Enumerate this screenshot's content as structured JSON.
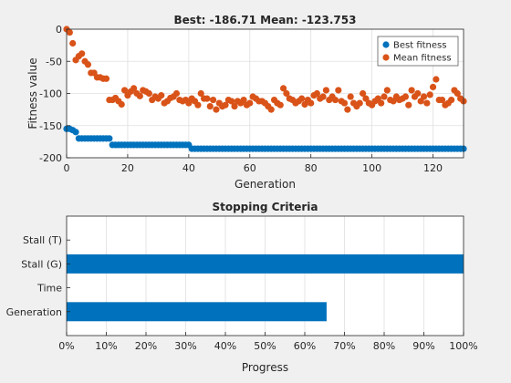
{
  "colors": {
    "best": "#0072BD",
    "mean": "#D95319",
    "background": "#f0f0f0",
    "axes_bg": "#ffffff",
    "grid": "#dfdfdf",
    "axis": "#262626"
  },
  "chart_data": [
    {
      "type": "scatter",
      "title": "Best: -186.71 Mean: -123.753",
      "xlabel": "Generation",
      "ylabel": "Fitness value",
      "xlim": [
        0,
        130
      ],
      "ylim": [
        -200,
        0
      ],
      "xticks": [
        0,
        20,
        40,
        60,
        80,
        100,
        120
      ],
      "yticks": [
        0,
        -50,
        -100,
        -150,
        -200
      ],
      "xtick_labels": [
        "0",
        "20",
        "40",
        "60",
        "80",
        "100",
        "120"
      ],
      "ytick_labels": [
        "0",
        "-50",
        "-100",
        "-150",
        "-200"
      ],
      "grid": true,
      "legend_position": "top-right",
      "series": [
        {
          "name": "Best fitness",
          "values": [
            -155,
            -155,
            -157,
            -160,
            -170,
            -170,
            -170,
            -170,
            -170,
            -170,
            -170,
            -170,
            -170,
            -170,
            -170,
            -180,
            -180,
            -180,
            -180,
            -180,
            -180,
            -180,
            -180,
            -180,
            -180,
            -180,
            -180,
            -180,
            -180,
            -180,
            -180,
            -180,
            -180,
            -180,
            -180,
            -180,
            -180,
            -180,
            -180,
            -180,
            -180,
            -186,
            -186,
            -186,
            -186,
            -186,
            -186,
            -186,
            -186,
            -186,
            -186,
            -186,
            -186,
            -186,
            -186,
            -186,
            -186,
            -186,
            -186,
            -186,
            -186,
            -186,
            -186,
            -186,
            -186,
            -186,
            -186,
            -186,
            -186,
            -186,
            -186,
            -186,
            -186,
            -186,
            -186,
            -186,
            -186,
            -186,
            -186,
            -186,
            -186,
            -186,
            -186,
            -186,
            -186,
            -186,
            -186,
            -186,
            -186,
            -186,
            -186,
            -186,
            -186,
            -186,
            -186,
            -186,
            -186,
            -186,
            -186,
            -186,
            -186,
            -186,
            -186,
            -186,
            -186,
            -186,
            -186,
            -186,
            -186,
            -186,
            -186,
            -186,
            -186,
            -186,
            -186,
            -186,
            -186,
            -186,
            -186,
            -186,
            -186,
            -186,
            -186,
            -186,
            -186,
            -186,
            -186,
            -186,
            -186,
            -186,
            -186
          ]
        },
        {
          "name": "Mean fitness",
          "values": [
            0,
            -5,
            -22,
            -48,
            -42,
            -38,
            -50,
            -55,
            -68,
            -68,
            -75,
            -75,
            -77,
            -77,
            -110,
            -110,
            -107,
            -112,
            -117,
            -95,
            -103,
            -97,
            -92,
            -100,
            -104,
            -95,
            -97,
            -100,
            -110,
            -105,
            -108,
            -103,
            -115,
            -112,
            -107,
            -105,
            -100,
            -110,
            -112,
            -110,
            -115,
            -108,
            -112,
            -118,
            -100,
            -108,
            -108,
            -120,
            -110,
            -125,
            -115,
            -120,
            -118,
            -110,
            -112,
            -120,
            -112,
            -115,
            -110,
            -118,
            -115,
            -105,
            -108,
            -112,
            -112,
            -115,
            -120,
            -125,
            -110,
            -115,
            -118,
            -92,
            -100,
            -108,
            -110,
            -115,
            -112,
            -108,
            -117,
            -110,
            -115,
            -103,
            -100,
            -108,
            -105,
            -95,
            -110,
            -105,
            -110,
            -95,
            -112,
            -115,
            -125,
            -105,
            -115,
            -120,
            -115,
            -100,
            -108,
            -115,
            -118,
            -112,
            -108,
            -115,
            -105,
            -95,
            -110,
            -112,
            -105,
            -110,
            -108,
            -105,
            -118,
            -95,
            -105,
            -100,
            -112,
            -105,
            -115,
            -102,
            -90,
            -78,
            -110,
            -110,
            -118,
            -115,
            -110,
            -95,
            -100,
            -108,
            -112
          ]
        }
      ]
    },
    {
      "type": "bar",
      "orientation": "horizontal",
      "title": "Stopping Criteria",
      "xlabel": "Progress",
      "xlim": [
        0,
        100
      ],
      "xticks": [
        0,
        10,
        20,
        30,
        40,
        50,
        60,
        70,
        80,
        90,
        100
      ],
      "xtick_labels": [
        "0%",
        "10%",
        "20%",
        "30%",
        "40%",
        "50%",
        "60%",
        "70%",
        "80%",
        "90%",
        "100%"
      ],
      "categories": [
        "Stall (T)",
        "Stall (G)",
        "Time",
        "Generation"
      ],
      "values": [
        0,
        100,
        0,
        65.5
      ],
      "grid": true
    }
  ]
}
